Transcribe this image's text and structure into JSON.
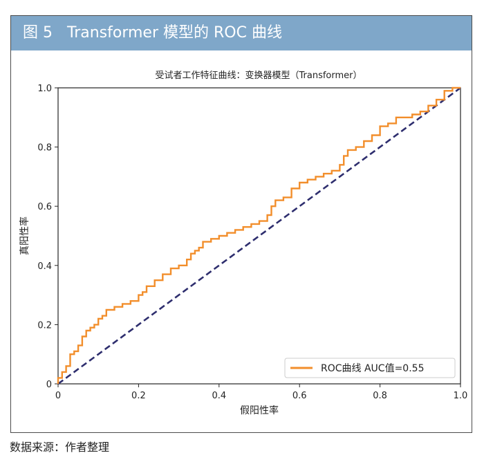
{
  "header": {
    "figure_label": "图 5",
    "figure_title": "Transformer 模型的 ROC 曲线"
  },
  "footer": {
    "source": "数据来源：作者整理"
  },
  "colors": {
    "header_bg": "#7fa7c9",
    "roc_line": "#f28e2b",
    "diagonal": "#2e2e6e"
  },
  "chart_data": {
    "type": "line",
    "title": "受试者工作特征曲线：变换器模型（Transformer）",
    "xlabel": "假阳性率",
    "ylabel": "真阳性率",
    "xlim": [
      0,
      1
    ],
    "ylim": [
      0,
      1
    ],
    "xticks": [
      0,
      0.2,
      0.4,
      0.6,
      0.8,
      1.0
    ],
    "xtick_labels": [
      "0",
      "0.2",
      "0.4",
      "0.6",
      "0.8",
      "1.0"
    ],
    "yticks": [
      0,
      0.2,
      0.4,
      0.6,
      0.8,
      1.0
    ],
    "ytick_labels": [
      "0",
      "0.2",
      "0.4",
      "0.6",
      "0.8",
      "1.0"
    ],
    "grid": false,
    "legend_position": "bottom-right",
    "series": [
      {
        "name": "ROC曲线 AUC值=0.55",
        "style": "solid",
        "color": "#f28e2b",
        "x": [
          0,
          0.01,
          0.02,
          0.03,
          0.04,
          0.05,
          0.06,
          0.07,
          0.08,
          0.09,
          0.1,
          0.11,
          0.12,
          0.13,
          0.14,
          0.16,
          0.18,
          0.2,
          0.21,
          0.22,
          0.24,
          0.26,
          0.28,
          0.3,
          0.32,
          0.33,
          0.34,
          0.35,
          0.36,
          0.38,
          0.4,
          0.42,
          0.44,
          0.46,
          0.48,
          0.5,
          0.52,
          0.53,
          0.54,
          0.56,
          0.58,
          0.6,
          0.62,
          0.64,
          0.66,
          0.68,
          0.7,
          0.71,
          0.72,
          0.74,
          0.76,
          0.78,
          0.8,
          0.82,
          0.84,
          0.86,
          0.88,
          0.9,
          0.92,
          0.94,
          0.96,
          0.98,
          1.0
        ],
        "y": [
          0,
          0.02,
          0.04,
          0.06,
          0.1,
          0.11,
          0.13,
          0.16,
          0.18,
          0.19,
          0.2,
          0.22,
          0.23,
          0.25,
          0.25,
          0.26,
          0.27,
          0.28,
          0.3,
          0.31,
          0.33,
          0.35,
          0.37,
          0.39,
          0.4,
          0.42,
          0.44,
          0.45,
          0.46,
          0.48,
          0.49,
          0.5,
          0.51,
          0.52,
          0.53,
          0.54,
          0.55,
          0.57,
          0.6,
          0.62,
          0.63,
          0.66,
          0.68,
          0.69,
          0.7,
          0.71,
          0.72,
          0.74,
          0.77,
          0.79,
          0.8,
          0.82,
          0.84,
          0.87,
          0.88,
          0.9,
          0.9,
          0.91,
          0.92,
          0.94,
          0.96,
          0.99,
          1.0
        ]
      },
      {
        "name": "",
        "style": "dashed",
        "color": "#2e2e6e",
        "x": [
          0,
          1
        ],
        "y": [
          0,
          1
        ]
      }
    ]
  }
}
